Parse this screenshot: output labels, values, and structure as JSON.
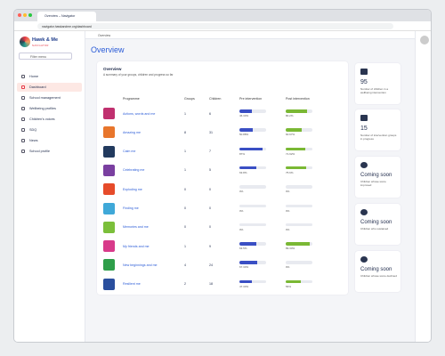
{
  "browser": {
    "tab_title": "Overview – Navigator",
    "url": "navigator.hawkandme.org/dashboard"
  },
  "sidebar": {
    "logo": "Hawk & Me",
    "logo_sub": "NAVIGATOR",
    "filter_placeholder": "Filter menu",
    "items": [
      "Home",
      "Dashboard",
      "School management",
      "Wellbeing profiles",
      "Children's voices",
      "SDQ",
      "News",
      "School profile"
    ]
  },
  "breadcrumb": "Overview",
  "page_title": "Overview",
  "overview": {
    "title": "Overview",
    "subtitle": "A summary of your groups, children and progress so far",
    "table": {
      "headers": [
        "Programme",
        "Groups",
        "Children",
        "Pre intervention",
        "Post intervention"
      ],
      "rows": [
        {
          "programme": "Actions, words and me",
          "groups": "1",
          "children": "6",
          "pre": 46.33,
          "pre_label": "46.33%",
          "post": 80.2,
          "post_label": "80.2%"
        },
        {
          "programme": "Amazing me",
          "groups": "8",
          "children": "31",
          "pre": 50.88,
          "pre_label": "50.88%",
          "post": 60.67,
          "post_label": "60.67%"
        },
        {
          "programme": "Calm me",
          "groups": "1",
          "children": "7",
          "pre": 87,
          "pre_label": "87%",
          "post": 71.92,
          "post_label": "71.92%"
        },
        {
          "programme": "Celebrating me",
          "groups": "1",
          "children": "5",
          "pre": 63.8,
          "pre_label": "63.8%",
          "post": 75.6,
          "post_label": "75.6%"
        },
        {
          "programme": "Exploding me",
          "groups": "0",
          "children": "0",
          "pre": 0,
          "pre_label": "0%",
          "post": 0,
          "post_label": "0%"
        },
        {
          "programme": "Finding me",
          "groups": "0",
          "children": "0",
          "pre": 0,
          "pre_label": "0%",
          "post": 0,
          "post_label": "0%"
        },
        {
          "programme": "Memories and me",
          "groups": "0",
          "children": "0",
          "pre": 0,
          "pre_label": "0%",
          "post": 0,
          "post_label": "0%"
        },
        {
          "programme": "My friends and me",
          "groups": "1",
          "children": "9",
          "pre": 63.5,
          "pre_label": "63.5%",
          "post": 89.33,
          "post_label": "89.33%"
        },
        {
          "programme": "New beginnings and me",
          "groups": "4",
          "children": "24",
          "pre": 67.33,
          "pre_label": "67.33%",
          "post": 0,
          "post_label": "0%"
        },
        {
          "programme": "Resilient me",
          "groups": "2",
          "children": "18",
          "pre": 47.33,
          "pre_label": "47.33%",
          "post": 56,
          "post_label": "56%"
        }
      ]
    }
  },
  "stats": [
    {
      "value": "95",
      "label": "Number of children in a wellbeing intervention"
    },
    {
      "value": "15",
      "label": "Number of intervention groups in progress"
    },
    {
      "value": "Coming soon",
      "label": "Children whose score improved"
    },
    {
      "value": "Coming soon",
      "label": "Children who sustained"
    },
    {
      "value": "Coming soon",
      "label": "Children whose score declined"
    }
  ]
}
